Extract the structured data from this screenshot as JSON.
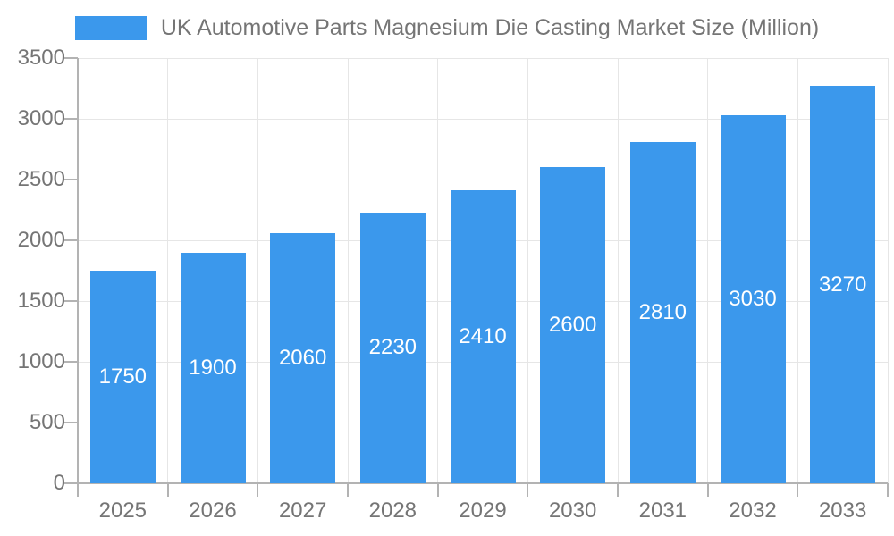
{
  "chart_data": {
    "type": "bar",
    "title": "UK Automotive Parts Magnesium Die Casting Market Size (Million)",
    "categories": [
      "2025",
      "2026",
      "2027",
      "2028",
      "2029",
      "2030",
      "2031",
      "2032",
      "2033"
    ],
    "values": [
      1750,
      1900,
      2060,
      2230,
      2410,
      2600,
      2810,
      3030,
      3270
    ],
    "xlabel": "",
    "ylabel": "",
    "ylim": [
      0,
      3500
    ],
    "yticks": [
      0,
      500,
      1000,
      1500,
      2000,
      2500,
      3000,
      3500
    ],
    "grid": true,
    "legend_position": "top",
    "bar_value_labels_visible": true,
    "colors": {
      "bar": "#3B98EC",
      "bar_label": "#FFFFFF",
      "axis_text": "#757575",
      "legend_text": "#757575",
      "gridline": "#E6E6E6",
      "axis_line": "#B3B3B3",
      "background": "#FFFFFF"
    }
  }
}
